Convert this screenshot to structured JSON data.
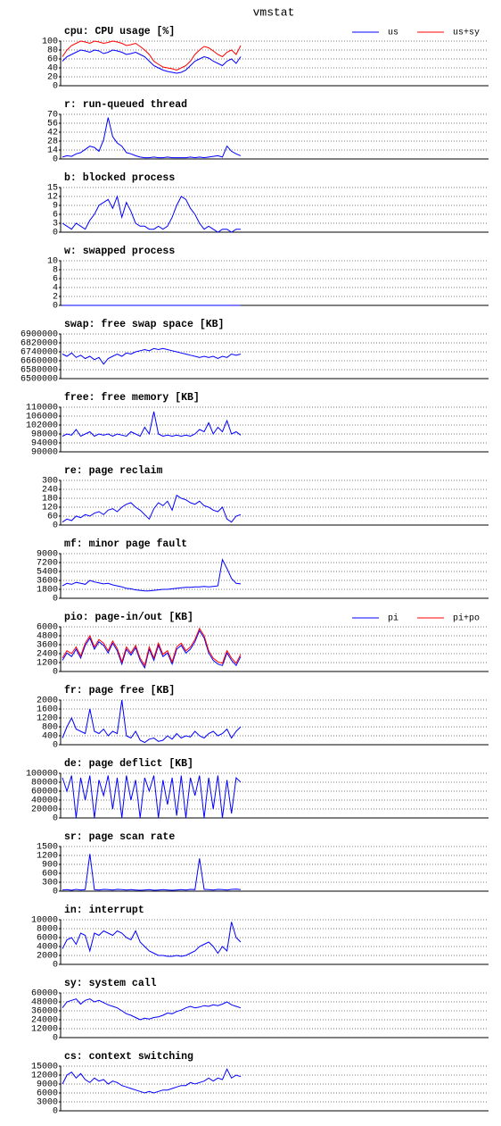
{
  "title": "vmstat",
  "chart_data": [
    {
      "type": "line",
      "title": "cpu: CPU usage [%]",
      "ylim": [
        0,
        100
      ],
      "yticks": [
        0,
        20,
        40,
        60,
        80,
        100
      ],
      "grid": true,
      "legend": "upper right",
      "series": [
        {
          "name": "us",
          "color": "#0000ff",
          "values": [
            55,
            65,
            70,
            75,
            80,
            78,
            75,
            80,
            78,
            72,
            75,
            80,
            78,
            75,
            70,
            72,
            75,
            70,
            65,
            55,
            45,
            40,
            35,
            32,
            30,
            28,
            30,
            35,
            45,
            55,
            60,
            65,
            62,
            55,
            50,
            45,
            55,
            60,
            50,
            65
          ]
        },
        {
          "name": "us+sy",
          "color": "#ff0000",
          "values": [
            65,
            80,
            90,
            95,
            100,
            98,
            95,
            100,
            98,
            95,
            97,
            100,
            98,
            95,
            90,
            92,
            95,
            88,
            80,
            70,
            55,
            48,
            42,
            40,
            38,
            35,
            40,
            45,
            55,
            70,
            80,
            88,
            85,
            78,
            70,
            65,
            75,
            80,
            70,
            90
          ]
        }
      ]
    },
    {
      "type": "line",
      "title": "r: run-queued thread",
      "ylim": [
        0,
        70
      ],
      "yticks": [
        0,
        14,
        28,
        42,
        56,
        70
      ],
      "grid": true,
      "series": [
        {
          "color": "#0000ff",
          "values": [
            3,
            5,
            4,
            8,
            10,
            15,
            20,
            18,
            12,
            30,
            65,
            35,
            25,
            20,
            10,
            8,
            5,
            3,
            2,
            2,
            3,
            2,
            2,
            3,
            2,
            2,
            2,
            2,
            3,
            2,
            3,
            2,
            3,
            4,
            5,
            3,
            20,
            12,
            8,
            5
          ]
        }
      ]
    },
    {
      "type": "line",
      "title": "b: blocked process",
      "ylim": [
        0,
        15
      ],
      "yticks": [
        0,
        3,
        6,
        9,
        12,
        15
      ],
      "grid": true,
      "series": [
        {
          "color": "#0000ff",
          "values": [
            3,
            2,
            1,
            3,
            2,
            1,
            4,
            6,
            9,
            10,
            11,
            8,
            12,
            5,
            10,
            7,
            3,
            2,
            2,
            1,
            1,
            2,
            1,
            2,
            5,
            9,
            12,
            11,
            8,
            6,
            3,
            1,
            2,
            1,
            0,
            1,
            1,
            0,
            1,
            1
          ]
        }
      ]
    },
    {
      "type": "line",
      "title": "w: swapped process",
      "ylim": [
        0,
        10
      ],
      "yticks": [
        0,
        2,
        4,
        6,
        8,
        10
      ],
      "grid": true,
      "series": [
        {
          "color": "#0000ff",
          "values": [
            0,
            0,
            0,
            0,
            0,
            0,
            0,
            0,
            0,
            0,
            0,
            0,
            0,
            0,
            0,
            0,
            0,
            0,
            0,
            0,
            0,
            0,
            0,
            0,
            0,
            0,
            0,
            0,
            0,
            0,
            0,
            0,
            0,
            0,
            0,
            0,
            0,
            0,
            0,
            0
          ]
        }
      ]
    },
    {
      "type": "line",
      "title": "swap: free swap space [KB]",
      "ylim": [
        6500000,
        6900000
      ],
      "yticks": [
        6500000,
        6580000,
        6660000,
        6740000,
        6820000,
        6900000
      ],
      "grid": true,
      "series": [
        {
          "color": "#0000ff",
          "values": [
            6720000,
            6700000,
            6730000,
            6690000,
            6710000,
            6680000,
            6700000,
            6670000,
            6690000,
            6630000,
            6680000,
            6700000,
            6720000,
            6700000,
            6730000,
            6720000,
            6740000,
            6750000,
            6760000,
            6750000,
            6770000,
            6760000,
            6770000,
            6760000,
            6750000,
            6740000,
            6730000,
            6720000,
            6710000,
            6700000,
            6690000,
            6700000,
            6690000,
            6700000,
            6680000,
            6700000,
            6690000,
            6720000,
            6710000,
            6720000
          ]
        }
      ]
    },
    {
      "type": "line",
      "title": "free: free memory [KB]",
      "ylim": [
        90000,
        110000
      ],
      "yticks": [
        90000,
        94000,
        98000,
        102000,
        106000,
        110000
      ],
      "grid": true,
      "series": [
        {
          "color": "#0000ff",
          "values": [
            97000,
            98000,
            97500,
            100000,
            97000,
            98000,
            99000,
            97000,
            98000,
            97500,
            98000,
            97000,
            98000,
            97500,
            97000,
            99000,
            98000,
            97000,
            101000,
            98000,
            108000,
            98000,
            97000,
            97500,
            97000,
            97500,
            97000,
            97500,
            97000,
            98000,
            100000,
            99000,
            103000,
            98000,
            101000,
            99000,
            104000,
            98000,
            99000,
            97500
          ]
        }
      ]
    },
    {
      "type": "line",
      "title": "re: page reclaim",
      "ylim": [
        0,
        300
      ],
      "yticks": [
        0,
        60,
        120,
        180,
        240,
        300
      ],
      "grid": true,
      "series": [
        {
          "color": "#0000ff",
          "values": [
            20,
            40,
            30,
            60,
            50,
            70,
            60,
            80,
            90,
            70,
            100,
            110,
            90,
            120,
            140,
            150,
            120,
            100,
            70,
            40,
            110,
            150,
            130,
            160,
            100,
            200,
            180,
            170,
            150,
            140,
            160,
            130,
            120,
            100,
            90,
            120,
            40,
            20,
            60,
            70
          ]
        }
      ]
    },
    {
      "type": "line",
      "title": "mf: minor page fault",
      "ylim": [
        0,
        9000
      ],
      "yticks": [
        0,
        1800,
        3600,
        5400,
        7200,
        9000
      ],
      "grid": true,
      "series": [
        {
          "color": "#0000ff",
          "values": [
            2500,
            3000,
            2800,
            3200,
            3000,
            2800,
            3600,
            3300,
            3100,
            2900,
            3000,
            2700,
            2500,
            2300,
            2000,
            1900,
            1700,
            1600,
            1500,
            1500,
            1600,
            1700,
            1800,
            1800,
            1900,
            2000,
            2100,
            2200,
            2200,
            2300,
            2300,
            2400,
            2300,
            2400,
            2500,
            7800,
            6000,
            4000,
            3000,
            2900
          ]
        }
      ]
    },
    {
      "type": "line",
      "title": "pio: page-in/out [KB]",
      "ylim": [
        0,
        6000
      ],
      "yticks": [
        0,
        1200,
        2400,
        3600,
        4800,
        6000
      ],
      "grid": true,
      "legend": "upper right",
      "series": [
        {
          "name": "pi",
          "color": "#0000ff",
          "values": [
            1500,
            2500,
            2000,
            3000,
            1800,
            3500,
            4500,
            3000,
            4000,
            3500,
            2500,
            3800,
            2800,
            1000,
            3000,
            2200,
            3200,
            1500,
            500,
            3000,
            1500,
            3500,
            2000,
            2500,
            1000,
            3000,
            3500,
            2500,
            3000,
            4000,
            5500,
            4500,
            2500,
            1500,
            1000,
            800,
            2500,
            1500,
            800,
            2000
          ]
        },
        {
          "name": "pi+po",
          "color": "#ff0000",
          "values": [
            1800,
            2800,
            2400,
            3300,
            2100,
            3800,
            4800,
            3300,
            4300,
            3800,
            2800,
            4100,
            3100,
            1300,
            3300,
            2500,
            3500,
            1800,
            800,
            3300,
            1800,
            3800,
            2300,
            2800,
            1300,
            3300,
            3800,
            2800,
            3300,
            4300,
            5800,
            4800,
            2800,
            1800,
            1300,
            1100,
            2800,
            1800,
            1100,
            2300
          ]
        }
      ]
    },
    {
      "type": "line",
      "title": "fr: page free [KB]",
      "ylim": [
        0,
        2000
      ],
      "yticks": [
        0,
        400,
        800,
        1200,
        1600,
        2000
      ],
      "grid": true,
      "series": [
        {
          "color": "#0000ff",
          "values": [
            300,
            800,
            1200,
            700,
            600,
            500,
            1600,
            600,
            500,
            700,
            400,
            600,
            500,
            2000,
            400,
            300,
            600,
            200,
            100,
            250,
            300,
            150,
            200,
            400,
            250,
            500,
            300,
            400,
            350,
            600,
            400,
            300,
            500,
            600,
            400,
            500,
            700,
            300,
            600,
            800
          ]
        }
      ]
    },
    {
      "type": "line",
      "title": "de: page deflict [KB]",
      "ylim": [
        0,
        100000
      ],
      "yticks": [
        0,
        20000,
        40000,
        60000,
        80000,
        100000
      ],
      "grid": true,
      "series": [
        {
          "color": "#0000ff",
          "values": [
            90000,
            60000,
            95000,
            0,
            90000,
            40000,
            95000,
            0,
            85000,
            50000,
            95000,
            20000,
            90000,
            0,
            95000,
            40000,
            85000,
            0,
            90000,
            60000,
            95000,
            0,
            85000,
            30000,
            90000,
            5000,
            95000,
            0,
            90000,
            50000,
            95000,
            0,
            90000,
            20000,
            95000,
            0,
            85000,
            10000,
            90000,
            80000
          ]
        }
      ]
    },
    {
      "type": "line",
      "title": "sr: page scan rate",
      "ylim": [
        0,
        1500
      ],
      "yticks": [
        0,
        300,
        600,
        900,
        1200,
        1500
      ],
      "grid": true,
      "series": [
        {
          "color": "#0000ff",
          "values": [
            40,
            50,
            30,
            60,
            40,
            50,
            1250,
            50,
            40,
            60,
            50,
            40,
            60,
            50,
            40,
            50,
            40,
            30,
            40,
            50,
            30,
            40,
            50,
            40,
            30,
            40,
            50,
            40,
            60,
            50,
            1100,
            60,
            50,
            40,
            60,
            50,
            40,
            60,
            70,
            50
          ]
        }
      ]
    },
    {
      "type": "line",
      "title": "in: interrupt",
      "ylim": [
        0,
        10000
      ],
      "yticks": [
        0,
        2000,
        4000,
        6000,
        8000,
        10000
      ],
      "grid": true,
      "series": [
        {
          "color": "#0000ff",
          "values": [
            3500,
            5500,
            6000,
            4500,
            7000,
            6500,
            3000,
            7000,
            6500,
            7500,
            7000,
            6500,
            7500,
            7000,
            6000,
            5500,
            7500,
            5000,
            4000,
            3000,
            2500,
            2000,
            2000,
            1800,
            1800,
            2000,
            1800,
            2000,
            2500,
            3000,
            4000,
            4500,
            5000,
            4000,
            2500,
            4000,
            3000,
            9500,
            6000,
            5000
          ]
        }
      ]
    },
    {
      "type": "line",
      "title": "sy: system call",
      "ylim": [
        0,
        60000
      ],
      "yticks": [
        0,
        12000,
        24000,
        36000,
        48000,
        60000
      ],
      "grid": true,
      "series": [
        {
          "color": "#0000ff",
          "values": [
            40000,
            48000,
            50000,
            52000,
            45000,
            50000,
            52000,
            48000,
            50000,
            47000,
            44000,
            42000,
            40000,
            36000,
            32000,
            30000,
            27000,
            24000,
            26000,
            25000,
            27000,
            28000,
            30000,
            33000,
            32000,
            35000,
            37000,
            40000,
            42000,
            40000,
            41000,
            43000,
            42000,
            44000,
            43000,
            45000,
            48000,
            44000,
            42000,
            40000
          ]
        }
      ]
    },
    {
      "type": "line",
      "title": "cs: context switching",
      "ylim": [
        0,
        15000
      ],
      "yticks": [
        0,
        3000,
        6000,
        9000,
        12000,
        15000
      ],
      "grid": true,
      "series": [
        {
          "color": "#0000ff",
          "values": [
            9000,
            12000,
            13000,
            11000,
            12500,
            10500,
            9500,
            11000,
            10000,
            10500,
            9000,
            10000,
            9500,
            8500,
            8000,
            7500,
            7000,
            6500,
            6000,
            6500,
            6000,
            6500,
            7000,
            7000,
            7500,
            8000,
            8500,
            8500,
            9500,
            9000,
            9500,
            10000,
            11000,
            10000,
            11000,
            10500,
            14000,
            11000,
            12000,
            11500
          ]
        }
      ]
    }
  ]
}
